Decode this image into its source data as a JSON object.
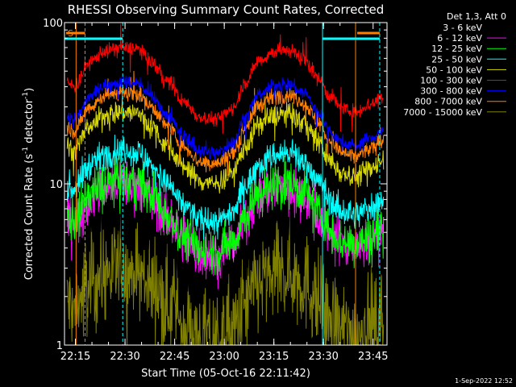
{
  "footer_timestamp": "1-Sep-2022 12:52",
  "chart_data": {
    "type": "line",
    "title": "RHESSI Observing Summary Count Rates, Corrected",
    "xlabel": "Start Time (05-Oct-16 22:11:42)",
    "ylabel_main": "Corrected Count Rate (s",
    "ylabel_sup": "-1",
    "ylabel_mid": " detector",
    "ylabel_sup2": "-1",
    "ylabel_end": ")",
    "y_scale": "log",
    "ylim": [
      1,
      100
    ],
    "xlim_minutes": [
      0,
      97.5
    ],
    "x_ticks": [
      {
        "minute": 3.3,
        "label": "22:15"
      },
      {
        "minute": 18.3,
        "label": "22:30"
      },
      {
        "minute": 33.3,
        "label": "22:45"
      },
      {
        "minute": 48.3,
        "label": "23:00"
      },
      {
        "minute": 63.3,
        "label": "23:15"
      },
      {
        "minute": 78.3,
        "label": "23:30"
      },
      {
        "minute": 93.3,
        "label": "23:45"
      }
    ],
    "y_ticks": [
      {
        "value": 1,
        "label": "1"
      },
      {
        "value": 10,
        "label": "10"
      },
      {
        "value": 100,
        "label": "100"
      }
    ],
    "legend": {
      "placement": "right",
      "header": "Det 1,3, Att 0",
      "entries": [
        {
          "label": "3 - 6 keV",
          "color": "#000000"
        },
        {
          "label": "6 - 12 keV",
          "color": "#ff00ff"
        },
        {
          "label": "12 - 25 keV",
          "color": "#00ff00"
        },
        {
          "label": "25 - 50 keV",
          "color": "#00ffff"
        },
        {
          "label": "50 - 100 keV",
          "color": "#d7d700"
        },
        {
          "label": "100 - 300 keV",
          "color": "#ff0000"
        },
        {
          "label": "300 - 800 keV",
          "color": "#0000ff"
        },
        {
          "label": "800 - 7000 keV",
          "color": "#ff8000"
        },
        {
          "label": "7000 - 15000 keV",
          "color": "#808000"
        }
      ]
    },
    "annotation_S": "S",
    "markers": {
      "orange_vertical_minutes": [
        3.5,
        88.0
      ],
      "orange_dashed_minutes": [
        6.2
      ],
      "cyan_vertical_minutes": [
        78.0
      ],
      "cyan_dashed_minutes": [
        17.6,
        95.3
      ],
      "cyan_bar_ranges": [
        [
          0,
          17.6
        ],
        [
          78.0,
          95.3
        ]
      ],
      "orange_bar_ranges": [
        [
          0.5,
          6.2
        ],
        [
          88.5,
          95.3
        ]
      ]
    },
    "series_profile": {
      "minutes": [
        0,
        3,
        8,
        12,
        17,
        22,
        26,
        31,
        36,
        41,
        46,
        51,
        55,
        59,
        64,
        68,
        72,
        77,
        80,
        84,
        88,
        92,
        96.5
      ],
      "relative": [
        0.62,
        0.58,
        0.82,
        0.95,
        1.0,
        0.98,
        0.82,
        0.62,
        0.46,
        0.37,
        0.36,
        0.42,
        0.62,
        0.84,
        0.95,
        0.96,
        0.86,
        0.64,
        0.5,
        0.42,
        0.4,
        0.44,
        0.5
      ]
    },
    "series": [
      {
        "name": "7000 - 15000 keV",
        "color": "#808000",
        "peak": 2.9,
        "noise": 0.55
      },
      {
        "name": "3 - 6 keV",
        "color": "#000000",
        "peak": 7.5,
        "noise": 0.38
      },
      {
        "name": "6 - 12 keV",
        "color": "#ff00ff",
        "peak": 10.0,
        "noise": 0.28
      },
      {
        "name": "12 - 25 keV",
        "color": "#00ff00",
        "peak": 10.5,
        "noise": 0.26
      },
      {
        "name": "25 - 50 keV",
        "color": "#00ffff",
        "peak": 16.0,
        "noise": 0.16
      },
      {
        "name": "50 - 100 keV",
        "color": "#d7d700",
        "peak": 28.0,
        "noise": 0.13
      },
      {
        "name": "800 - 7000 keV",
        "color": "#ff8000",
        "peak": 37.0,
        "noise": 0.09
      },
      {
        "name": "300 - 800 keV",
        "color": "#0000ff",
        "peak": 43.0,
        "noise": 0.08
      },
      {
        "name": "100 - 300 keV",
        "color": "#ff0000",
        "peak": 70.0,
        "noise": 0.08
      }
    ]
  }
}
